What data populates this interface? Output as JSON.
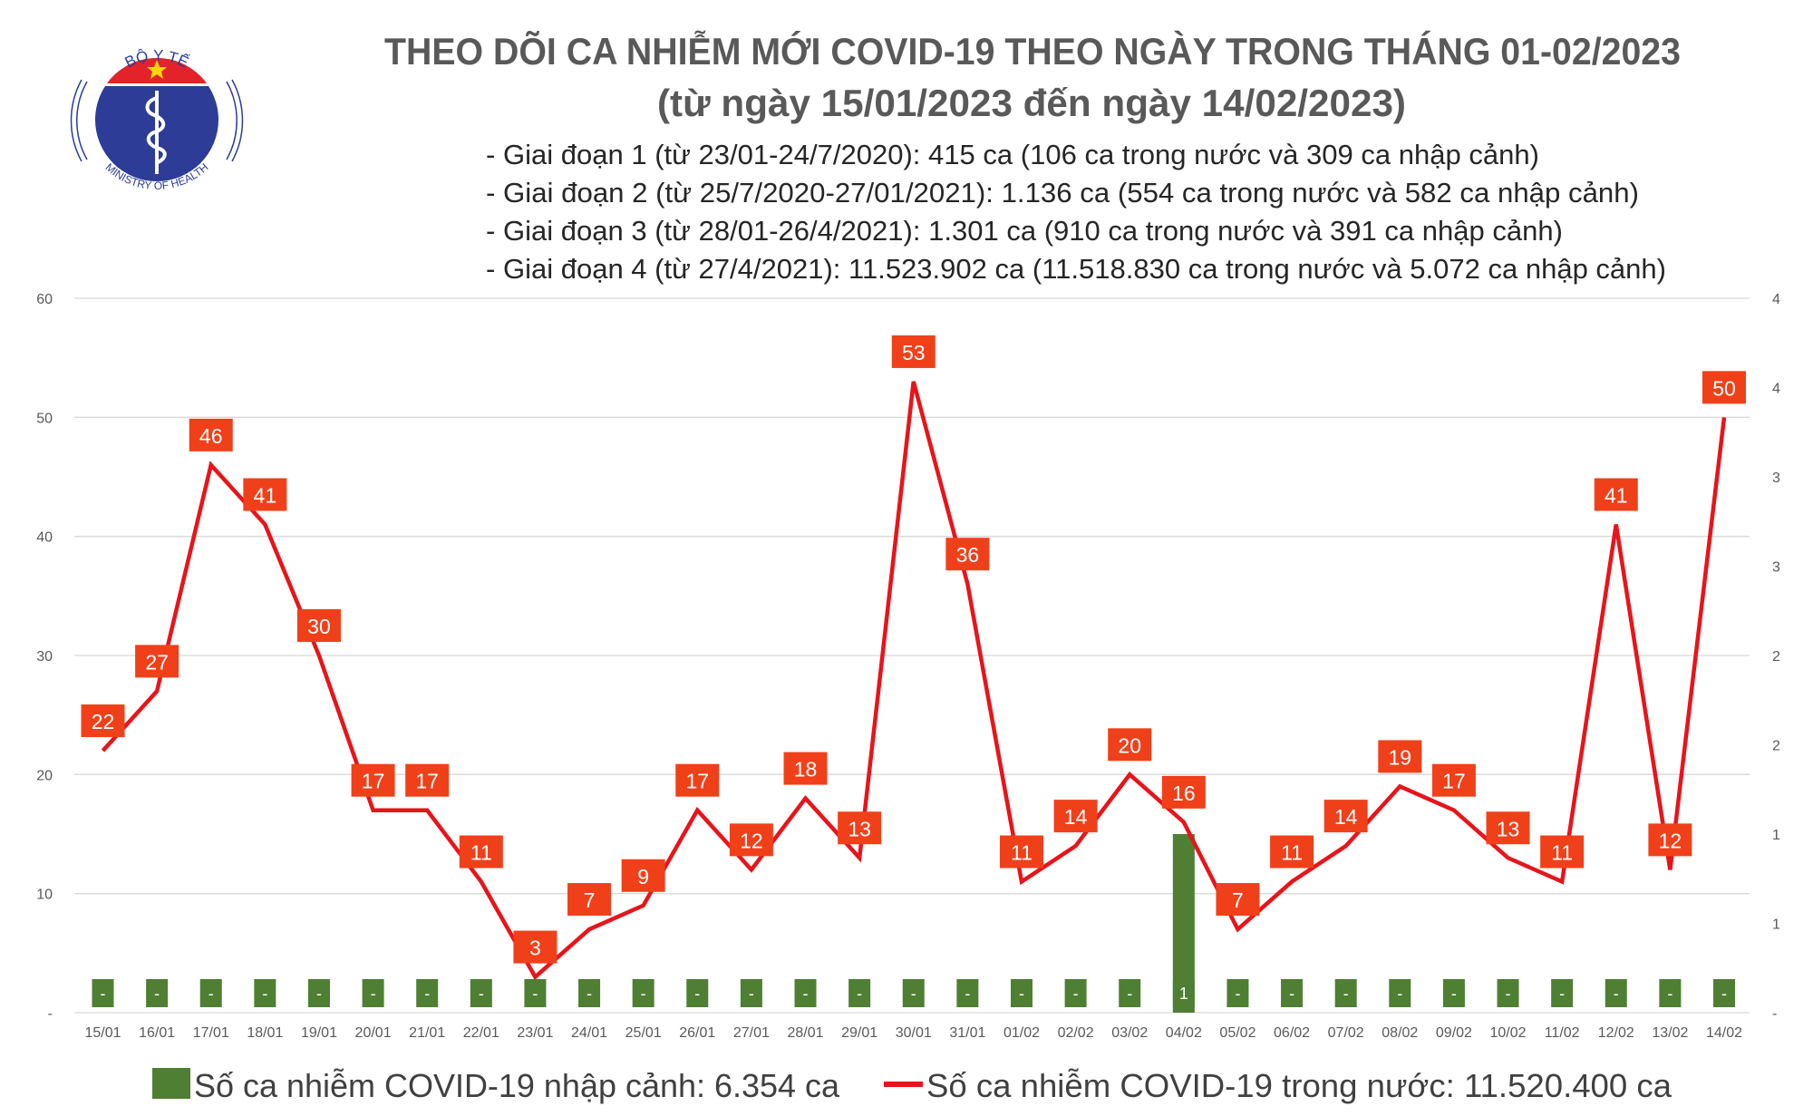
{
  "logo": {
    "top_text": "BỘ Y TẾ",
    "bottom_text": "MINISTRY OF HEALTH"
  },
  "title": "THEO DÕI CA NHIỄM MỚI COVID-19 THEO NGÀY TRONG THÁNG 01-02/2023",
  "subtitle": "(từ ngày 15/01/2023 đến ngày 14/02/2023)",
  "phases": [
    "- Giai đoạn 1 (từ 23/01-24/7/2020): 415 ca (106 ca trong nước và 309 ca nhập cảnh)",
    "- Giai đoạn 2 (từ 25/7/2020-27/01/2021): 1.136 ca (554 ca trong nước và 582 ca nhập cảnh)",
    "- Giai đoạn 3 (từ 28/01-26/4/2021): 1.301 ca (910 ca trong nước và 391 ca nhập cảnh)",
    "- Giai đoạn 4 (từ 27/4/2021): 11.523.902 ca (11.518.830 ca trong nước và 5.072 ca nhập cảnh)"
  ],
  "chart_data": {
    "type": "bar+line",
    "categories": [
      "15/01",
      "16/01",
      "17/01",
      "18/01",
      "19/01",
      "20/01",
      "21/01",
      "22/01",
      "23/01",
      "24/01",
      "25/01",
      "26/01",
      "27/01",
      "28/01",
      "29/01",
      "30/01",
      "31/01",
      "01/02",
      "02/02",
      "03/02",
      "04/02",
      "05/02",
      "06/02",
      "07/02",
      "08/02",
      "09/02",
      "10/02",
      "11/02",
      "12/02",
      "13/02",
      "14/02"
    ],
    "series": [
      {
        "name": "Số ca nhiễm COVID-19 nhập cảnh: 6.354 ca",
        "type": "bar",
        "axis": "right",
        "color": "#4e7f33",
        "values": [
          0,
          0,
          0,
          0,
          0,
          0,
          0,
          0,
          0,
          0,
          0,
          0,
          0,
          0,
          0,
          0,
          0,
          0,
          0,
          0,
          1,
          0,
          0,
          0,
          0,
          0,
          0,
          0,
          0,
          0,
          0
        ]
      },
      {
        "name": "Số ca nhiễm COVID-19 trong nước: 11.520.400 ca",
        "type": "line",
        "axis": "left",
        "color": "#e8141a",
        "values": [
          22,
          27,
          46,
          41,
          30,
          17,
          17,
          11,
          3,
          7,
          9,
          17,
          12,
          18,
          13,
          53,
          36,
          11,
          14,
          20,
          16,
          7,
          11,
          14,
          19,
          17,
          13,
          11,
          41,
          12,
          50
        ]
      }
    ],
    "left_ticks": [
      "-",
      "10",
      "20",
      "30",
      "40",
      "50",
      "60"
    ],
    "right_ticks": [
      "-",
      "1",
      "1",
      "2",
      "2",
      "3",
      "3",
      "4",
      "4"
    ],
    "ylim_left": [
      0,
      60
    ],
    "ylim_right": [
      0,
      4
    ],
    "grid": true,
    "legend": "bottom",
    "label_color": "#f0401a",
    "zero_label": "-"
  }
}
